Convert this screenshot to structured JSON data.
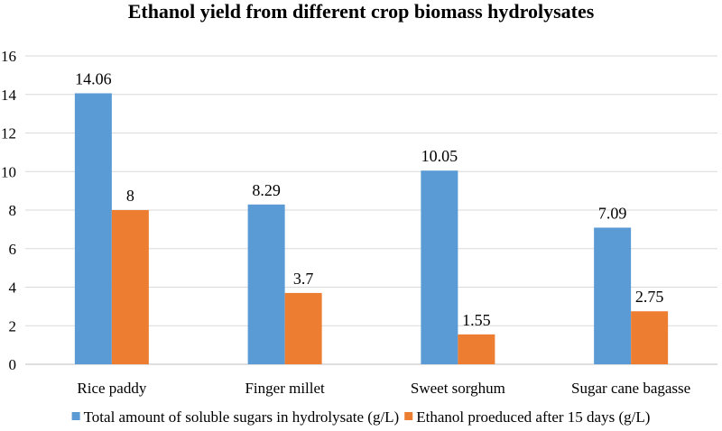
{
  "chart_data": {
    "type": "bar",
    "title": "Ethanol yield from different crop biomass hydrolysates",
    "categories": [
      "Rice paddy",
      "Finger millet",
      "Sweet sorghum",
      "Sugar cane bagasse"
    ],
    "series": [
      {
        "name": "Total amount of soluble sugars in hydrolysate (g/L)",
        "values": [
          14.06,
          8.29,
          10.05,
          7.09
        ],
        "labels": [
          "14.06",
          "8.29",
          "10.05",
          "7.09"
        ],
        "color": "#5b9bd5"
      },
      {
        "name": "Ethanol proeduced after 15 days (g/L)",
        "values": [
          8,
          3.7,
          1.55,
          2.75
        ],
        "labels": [
          "8",
          "3.7",
          "1.55",
          "2.75"
        ],
        "color": "#ed7d31"
      }
    ],
    "ylim": [
      0,
      16
    ],
    "yticks": [
      0,
      2,
      4,
      6,
      8,
      10,
      12,
      14,
      16
    ],
    "grid": true,
    "legend_position": "bottom"
  }
}
